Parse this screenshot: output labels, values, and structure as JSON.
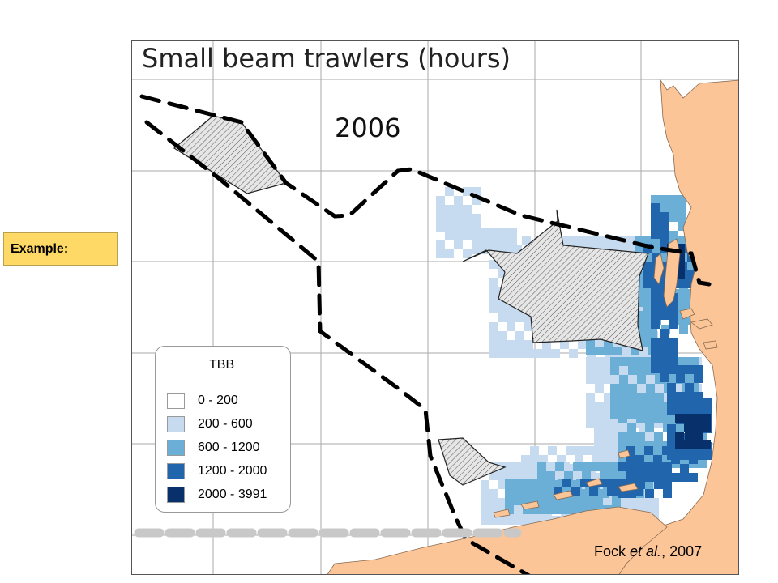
{
  "slide": {
    "example_label": "Example:"
  },
  "map": {
    "title": "Small beam trawlers (hours)",
    "year": "2006",
    "credit_author": "Fock",
    "credit_etal": "et al.",
    "credit_year": ", 2007",
    "land_color": "#fbc597",
    "legend": {
      "title": "TBB",
      "classes": [
        {
          "label": "0 - 200",
          "color": "#ffffff"
        },
        {
          "label": "200 - 600",
          "color": "#c6dbef"
        },
        {
          "label": "600 - 1200",
          "color": "#6baed6"
        },
        {
          "label": "1200 - 2000",
          "color": "#2166ac"
        },
        {
          "label": "2000 - 3991",
          "color": "#08306b"
        }
      ]
    }
  }
}
